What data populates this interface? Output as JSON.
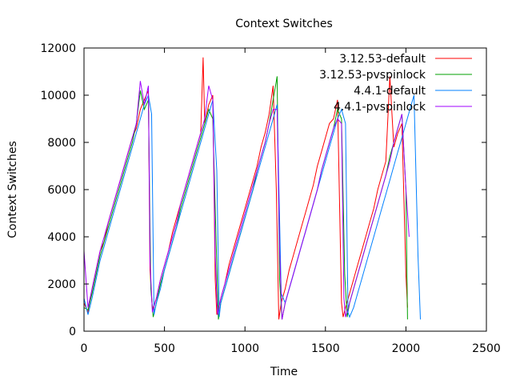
{
  "chart_data": {
    "type": "line",
    "title": "Context Switches",
    "xlabel": "Time",
    "ylabel": "Context Switches",
    "xlim": [
      0,
      2500
    ],
    "ylim": [
      0,
      12000
    ],
    "xticks": [
      0,
      500,
      1000,
      1500,
      2000,
      2500
    ],
    "yticks": [
      0,
      2000,
      4000,
      6000,
      8000,
      10000,
      12000
    ],
    "grid": false,
    "legend_position": "top-right",
    "series": [
      {
        "name": "3.12.53-default",
        "color": "#ff0000",
        "x": [
          0,
          25,
          50,
          75,
          100,
          125,
          150,
          175,
          200,
          225,
          250,
          275,
          300,
          325,
          350,
          375,
          400,
          410,
          425,
          450,
          475,
          500,
          525,
          550,
          575,
          600,
          625,
          650,
          675,
          700,
          725,
          740,
          750,
          775,
          800,
          815,
          825,
          850,
          875,
          900,
          925,
          950,
          975,
          1000,
          1025,
          1050,
          1075,
          1100,
          1125,
          1150,
          1175,
          1195,
          1210,
          1225,
          1250,
          1275,
          1300,
          1325,
          1350,
          1375,
          1400,
          1425,
          1450,
          1475,
          1500,
          1525,
          1550,
          1575,
          1600,
          1610,
          1625,
          1650,
          1675,
          1700,
          1725,
          1750,
          1775,
          1800,
          1825,
          1850,
          1875,
          1900,
          1925,
          1950,
          1975,
          2000,
          2010
        ],
        "values": [
          1200,
          800,
          1800,
          2600,
          3400,
          3800,
          4600,
          5200,
          5800,
          6400,
          7000,
          7600,
          8200,
          8600,
          9400,
          9800,
          10200,
          2600,
          900,
          1400,
          2200,
          2800,
          3400,
          4200,
          4800,
          5400,
          6000,
          6600,
          7200,
          7800,
          8400,
          11600,
          8800,
          9600,
          10000,
          2200,
          700,
          1400,
          2000,
          2800,
          3400,
          4000,
          4600,
          5200,
          5800,
          6400,
          7000,
          7800,
          8400,
          9200,
          10400,
          6000,
          500,
          1200,
          1800,
          2600,
          3200,
          3800,
          4400,
          5000,
          5600,
          6200,
          7000,
          7600,
          8200,
          8800,
          9000,
          9800,
          1200,
          600,
          1000,
          1600,
          2200,
          2800,
          3400,
          4000,
          4600,
          5200,
          6000,
          6600,
          7200,
          10800,
          7800,
          8400,
          8800,
          2400,
          1000
        ]
      },
      {
        "name": "3.12.53-pvspinlock",
        "color": "#00a000",
        "x": [
          0,
          25,
          50,
          75,
          100,
          125,
          150,
          175,
          200,
          225,
          250,
          275,
          300,
          325,
          350,
          375,
          400,
          415,
          430,
          450,
          475,
          500,
          525,
          550,
          575,
          600,
          625,
          650,
          675,
          700,
          725,
          750,
          775,
          800,
          820,
          835,
          850,
          875,
          900,
          925,
          950,
          975,
          1000,
          1025,
          1050,
          1075,
          1100,
          1125,
          1150,
          1175,
          1200,
          1215,
          1230,
          1250,
          1275,
          1300,
          1325,
          1350,
          1375,
          1400,
          1425,
          1450,
          1475,
          1500,
          1525,
          1550,
          1575,
          1600,
          1620,
          1635,
          1650,
          1675,
          1700,
          1725,
          1750,
          1775,
          1800,
          1825,
          1850,
          1875,
          1900,
          1925,
          1950,
          1975,
          2000,
          2010
        ],
        "values": [
          1000,
          900,
          1600,
          2400,
          3200,
          3800,
          4400,
          5000,
          5600,
          6200,
          6800,
          7400,
          8000,
          8800,
          10200,
          9400,
          9800,
          1800,
          600,
          1200,
          2000,
          2600,
          3200,
          3800,
          4400,
          5200,
          5800,
          6400,
          7000,
          7600,
          8200,
          8800,
          9400,
          9000,
          4000,
          500,
          1200,
          1800,
          2400,
          3000,
          3600,
          4200,
          4800,
          5400,
          6000,
          6800,
          7400,
          8000,
          8800,
          9800,
          10800,
          2200,
          500,
          1200,
          1800,
          2400,
          3000,
          3600,
          4200,
          4800,
          5400,
          6000,
          6800,
          7400,
          8000,
          8600,
          9400,
          9000,
          2400,
          600,
          1200,
          1800,
          2400,
          3000,
          3600,
          4200,
          4800,
          5400,
          6000,
          6600,
          7400,
          8000,
          8600,
          9200,
          6000,
          500
        ]
      },
      {
        "name": "4.4.1-default",
        "color": "#0080ff",
        "x": [
          0,
          25,
          50,
          75,
          100,
          125,
          150,
          175,
          200,
          225,
          250,
          275,
          300,
          325,
          350,
          375,
          400,
          420,
          435,
          450,
          475,
          500,
          525,
          550,
          575,
          600,
          625,
          650,
          675,
          700,
          725,
          750,
          775,
          800,
          825,
          840,
          850,
          875,
          900,
          925,
          950,
          975,
          1000,
          1025,
          1050,
          1075,
          1100,
          1125,
          1150,
          1175,
          1200,
          1225,
          1250,
          1275,
          1300,
          1325,
          1350,
          1375,
          1400,
          1425,
          1450,
          1475,
          1500,
          1525,
          1550,
          1575,
          1600,
          1625,
          1640,
          1650,
          1675,
          1700,
          1725,
          1750,
          1775,
          1800,
          1825,
          1850,
          1875,
          1900,
          1925,
          1950,
          1975,
          2000,
          2025,
          2050,
          2075,
          2090
        ],
        "values": [
          1400,
          700,
          1400,
          2200,
          3000,
          3600,
          4200,
          4800,
          5400,
          6000,
          6600,
          7200,
          7800,
          8400,
          9000,
          9600,
          10000,
          9200,
          700,
          1200,
          1800,
          2600,
          3200,
          3800,
          4400,
          5000,
          5600,
          6200,
          6800,
          7400,
          8000,
          8600,
          9200,
          9800,
          6800,
          600,
          1200,
          1800,
          2400,
          3000,
          3600,
          4200,
          4800,
          5400,
          6000,
          6600,
          7200,
          7800,
          8400,
          9000,
          9600,
          1600,
          1200,
          1800,
          2400,
          3000,
          3600,
          4200,
          4800,
          5400,
          6000,
          6600,
          7200,
          7800,
          8400,
          9000,
          9400,
          8800,
          800,
          600,
          1000,
          1600,
          2200,
          2800,
          3400,
          4000,
          4600,
          5200,
          5800,
          6400,
          7000,
          7600,
          8200,
          8800,
          9400,
          10000,
          3200,
          500
        ]
      },
      {
        "name": "4.4.1-pvspinlock",
        "color": "#a000ff",
        "x": [
          0,
          25,
          50,
          75,
          100,
          125,
          150,
          175,
          200,
          225,
          250,
          275,
          300,
          325,
          350,
          375,
          400,
          410,
          425,
          450,
          475,
          500,
          525,
          550,
          575,
          600,
          625,
          650,
          675,
          700,
          725,
          750,
          775,
          800,
          815,
          830,
          850,
          875,
          900,
          925,
          950,
          975,
          1000,
          1025,
          1050,
          1075,
          1100,
          1125,
          1150,
          1175,
          1200,
          1215,
          1230,
          1250,
          1275,
          1300,
          1325,
          1350,
          1375,
          1400,
          1425,
          1450,
          1475,
          1500,
          1525,
          1550,
          1575,
          1600,
          1615,
          1625,
          1650,
          1675,
          1700,
          1725,
          1750,
          1775,
          1800,
          1825,
          1850,
          1875,
          1900,
          1925,
          1950,
          1975,
          2000,
          2020
        ],
        "values": [
          3400,
          1000,
          1800,
          2600,
          3400,
          4000,
          4600,
          5200,
          5800,
          6400,
          7000,
          7600,
          8200,
          8800,
          10600,
          9600,
          10400,
          3000,
          800,
          1400,
          2200,
          2800,
          3400,
          4000,
          4600,
          5400,
          6000,
          6600,
          7200,
          7800,
          8400,
          9000,
          10400,
          9800,
          3200,
          700,
          1400,
          2000,
          2600,
          3200,
          3800,
          4400,
          5000,
          5600,
          6200,
          6800,
          7400,
          8000,
          8800,
          9400,
          9400,
          3400,
          500,
          1200,
          1800,
          2400,
          3000,
          3600,
          4200,
          4800,
          5400,
          6000,
          6800,
          7400,
          8000,
          8600,
          9000,
          8800,
          1400,
          600,
          1200,
          1800,
          2400,
          3000,
          3600,
          4200,
          4800,
          5400,
          6000,
          6600,
          7200,
          8000,
          8600,
          9200,
          6000,
          4000
        ]
      }
    ]
  }
}
